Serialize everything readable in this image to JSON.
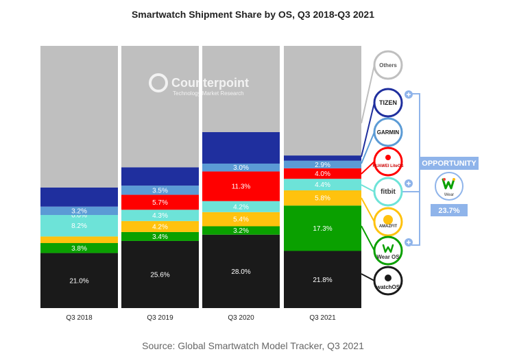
{
  "chart_data": {
    "type": "bar",
    "stacked": true,
    "title": "Smartwatch Shipment Share by OS, Q3 2018-Q3 2021",
    "categories": [
      "Q3 2018",
      "Q3 2019",
      "Q3 2020",
      "Q3 2021"
    ],
    "ylim": [
      0,
      100
    ],
    "series": [
      {
        "name": "watchOS",
        "color": "#1a1a1a",
        "label_color": "#ffffff",
        "values": [
          21.0,
          25.6,
          28.0,
          21.8
        ],
        "labels": [
          "21.0%",
          "25.6%",
          "28.0%",
          "21.8%"
        ]
      },
      {
        "name": "Wear OS",
        "color": "#0aa000",
        "label_color": "#ffffff",
        "values": [
          3.8,
          3.4,
          3.2,
          17.3
        ],
        "labels": [
          "3.8%",
          "3.4%",
          "3.2%",
          "17.3%"
        ]
      },
      {
        "name": "Amazfit",
        "color": "#ffc20e",
        "label_color": "#ffffff",
        "values": [
          2.5,
          4.2,
          5.4,
          5.8
        ],
        "labels": [
          "",
          "4.2%",
          "5.4%",
          "5.8%"
        ]
      },
      {
        "name": "Fitbit",
        "color": "#6de3d8",
        "label_color": "#ffffff",
        "values": [
          8.2,
          4.3,
          4.2,
          4.4
        ],
        "labels": [
          "8.2%",
          "4.3%",
          "4.2%",
          "4.4%"
        ]
      },
      {
        "name": "Huawei LiteOS",
        "color": "#ff0000",
        "label_color": "#ffffff",
        "values": [
          0.0,
          5.7,
          11.3,
          4.0
        ],
        "labels": [
          "0.0%",
          "5.7%",
          "11.3%",
          "4.0%"
        ]
      },
      {
        "name": "Garmin",
        "color": "#5b9bd5",
        "label_color": "#ffffff",
        "values": [
          3.2,
          3.5,
          3.0,
          2.9
        ],
        "labels": [
          "3.2%",
          "3.5%",
          "3.0%",
          "2.9%"
        ]
      },
      {
        "name": "Tizen",
        "color": "#1f2f9e",
        "label_color": "#ffffff",
        "values": [
          7.3,
          7.0,
          12.0,
          2.0
        ],
        "labels": [
          "",
          "",
          "",
          ""
        ]
      },
      {
        "name": "Others",
        "color": "#bfbfbf",
        "label_color": "#ffffff",
        "values": [
          54.0,
          46.3,
          32.9,
          41.8
        ],
        "labels": [
          "",
          "",
          "",
          ""
        ]
      }
    ],
    "source": "Source: Global Smartwatch Model Tracker, Q3 2021",
    "watermark": {
      "brand": "Counterpoint",
      "tagline": "Technology Market Research"
    }
  },
  "legend": [
    {
      "key": "others",
      "text": "Others",
      "ring": "#bfbfbf",
      "text_color": "#555555",
      "plus": false
    },
    {
      "key": "tizen",
      "text": "TIZEN",
      "ring": "#1f2f9e",
      "text_color": "#1a1a1a",
      "plus": true
    },
    {
      "key": "garmin",
      "text": "GARMIN",
      "ring": "#5b9bd5",
      "text_color": "#1a1a1a",
      "plus": false
    },
    {
      "key": "huawei",
      "text": "HUAWEI LiteOS",
      "ring": "#ff0000",
      "text_color": "#cc0000",
      "plus": false
    },
    {
      "key": "fitbit",
      "text": "fitbit",
      "ring": "#6de3d8",
      "text_color": "#333333",
      "plus": true
    },
    {
      "key": "amazfit",
      "text": "AMAZFIT",
      "ring": "#ffc20e",
      "text_color": "#333333",
      "plus": false
    },
    {
      "key": "wearos",
      "text": "Wear OS",
      "ring": "#0aa000",
      "text_color": "#333333",
      "plus": true
    },
    {
      "key": "watchos",
      "text": "watchOS",
      "ring": "#1a1a1a",
      "text_color": "#1a1a1a",
      "plus": false
    }
  ],
  "opportunity": {
    "title": "OPPORTUNITY",
    "logo_text": "Wear",
    "value": "23.7%",
    "color": "#8fb4ea"
  }
}
